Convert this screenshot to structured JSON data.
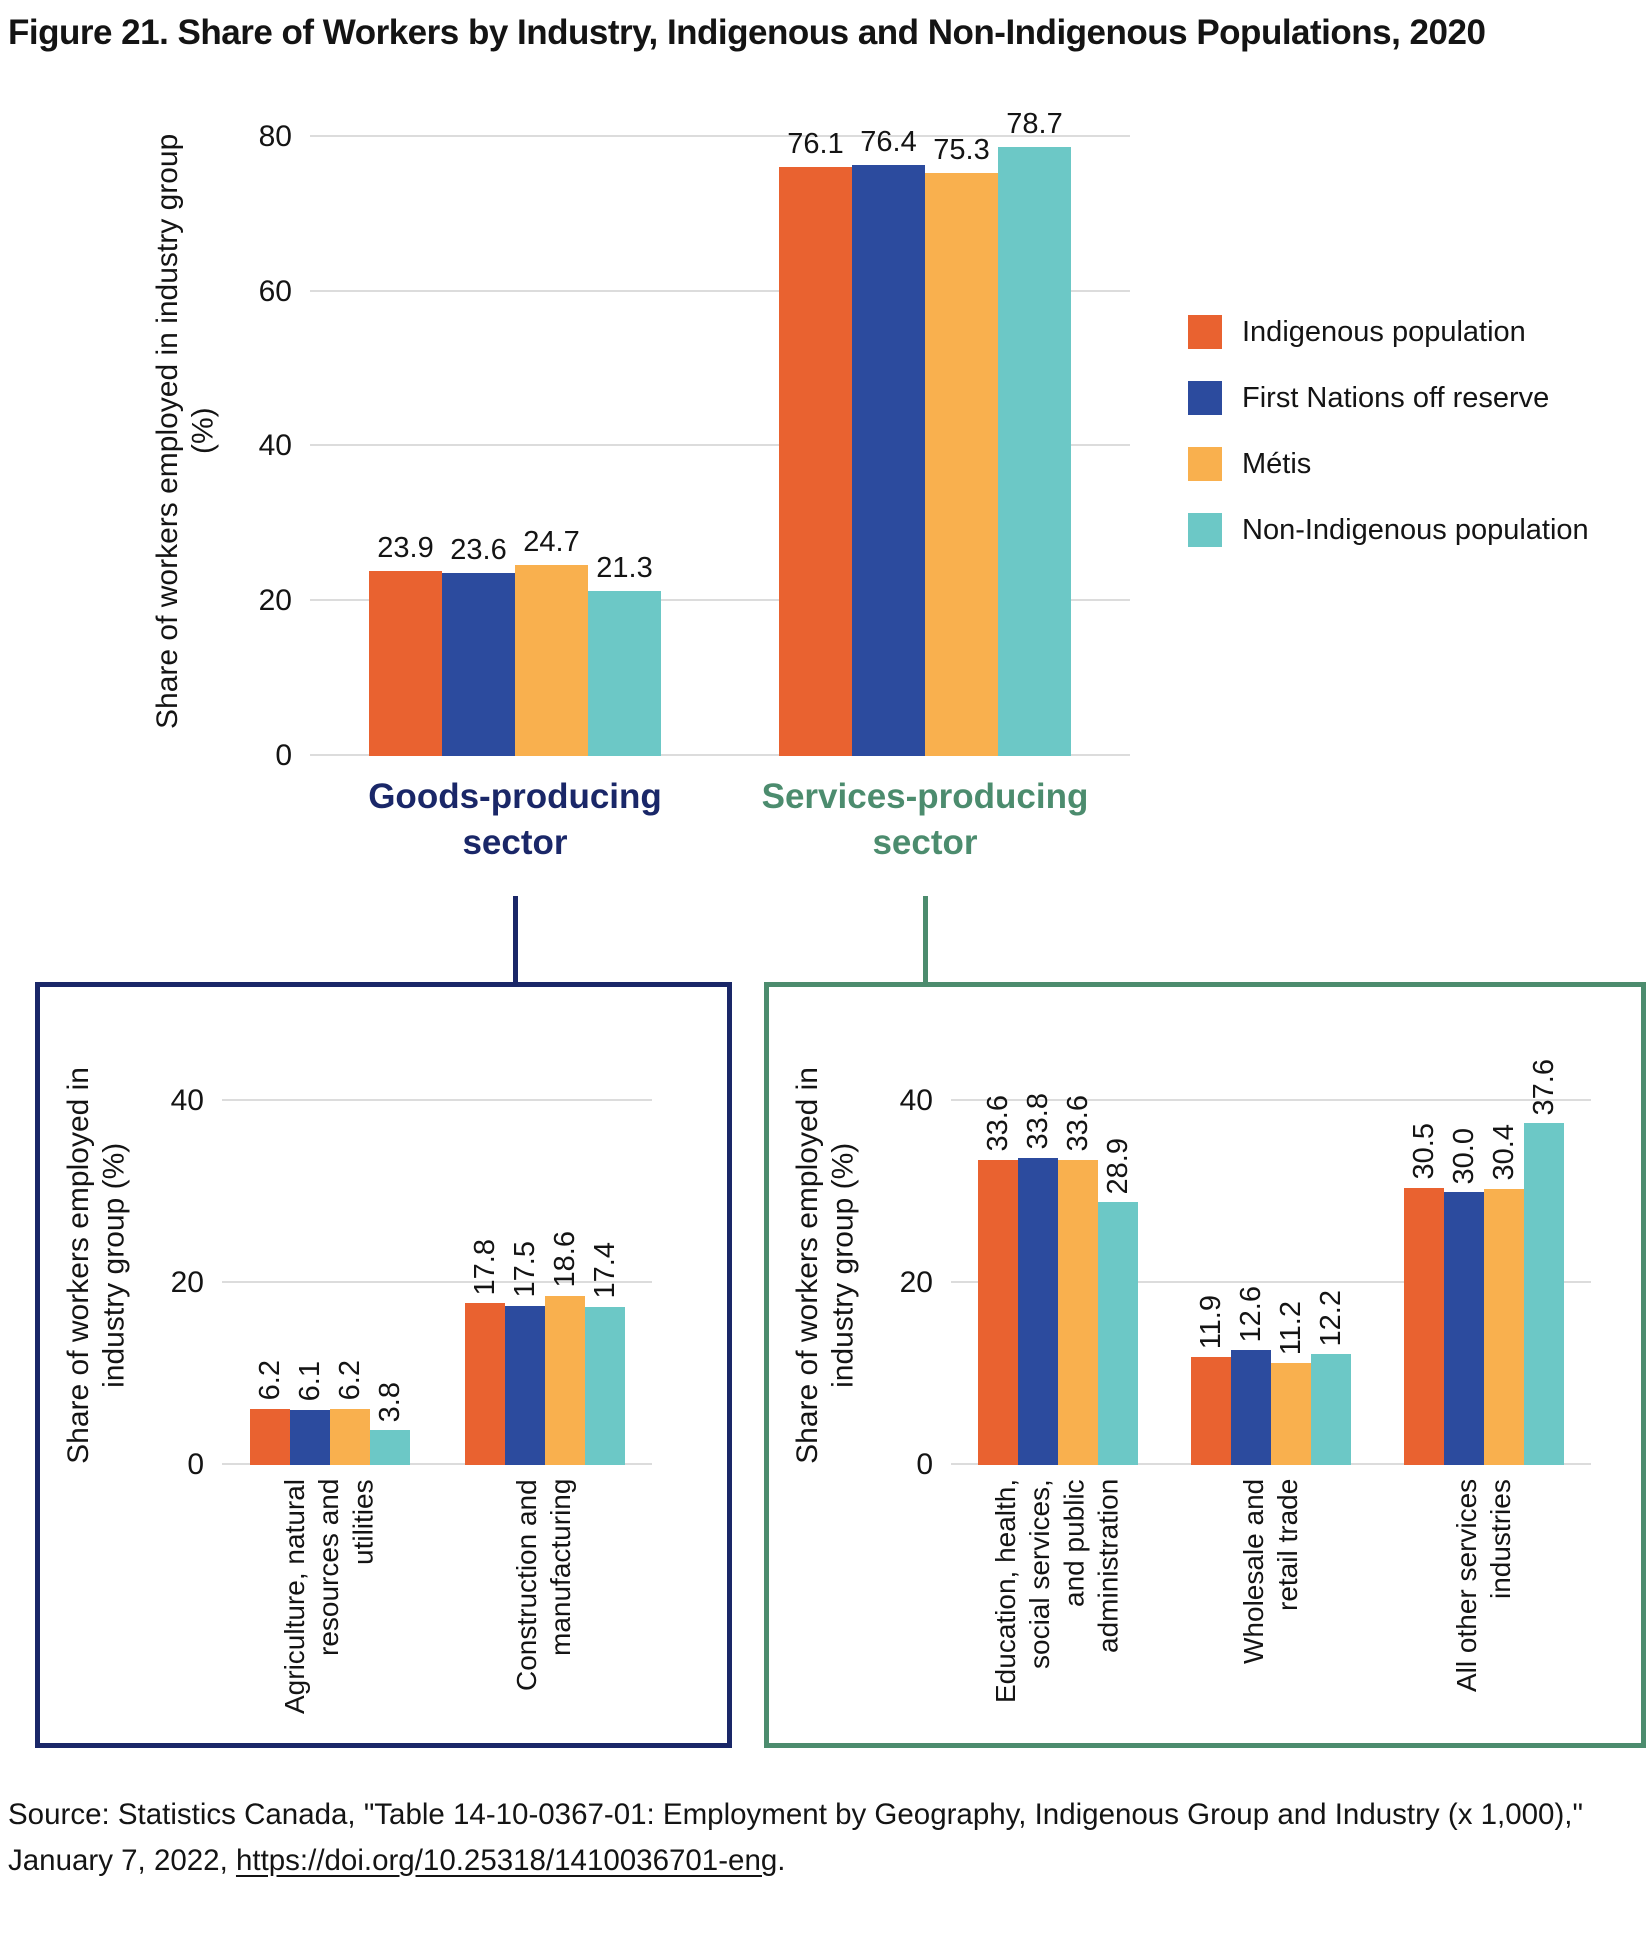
{
  "title": "Figure 21. Share of Workers by Industry, Indigenous and Non-Indigenous Populations, 2020",
  "colors": {
    "orange": "#E96230",
    "blue": "#2C4B9E",
    "amber": "#F9B04E",
    "teal": "#6CC8C6",
    "navy": "#1A2768",
    "green": "#4C8C6E",
    "gridline": "#DCDCDC"
  },
  "legend": {
    "items": [
      {
        "label": "Indigenous population",
        "color": "#E96230"
      },
      {
        "label": "First Nations off reserve",
        "color": "#2C4B9E"
      },
      {
        "label": "Métis",
        "color": "#F9B04E"
      },
      {
        "label": "Non-Indigenous population",
        "color": "#6CC8C6"
      }
    ]
  },
  "sectors": {
    "goods": {
      "label": "Goods-producing\nsector",
      "color": "#1A2768"
    },
    "services": {
      "label": "Services-producing\nsector",
      "color": "#4C8C6E"
    }
  },
  "chart_data": [
    {
      "id": "main",
      "type": "bar",
      "title": "",
      "ylabel": "Share of workers employed in industry group (%)",
      "ylim": [
        0,
        80
      ],
      "yticks": [
        0,
        20,
        40,
        60,
        80
      ],
      "grid": true,
      "legend_position": "right",
      "categories": [
        "Goods-producing sector",
        "Services-producing sector"
      ],
      "series": [
        {
          "name": "Indigenous population",
          "color": "#E96230",
          "values": [
            23.9,
            76.1
          ]
        },
        {
          "name": "First Nations off reserve",
          "color": "#2C4B9E",
          "values": [
            23.6,
            76.4
          ]
        },
        {
          "name": "Métis",
          "color": "#F9B04E",
          "values": [
            24.7,
            75.3
          ]
        },
        {
          "name": "Non-Indigenous population",
          "color": "#6CC8C6",
          "values": [
            21.3,
            78.7
          ]
        }
      ]
    },
    {
      "id": "goods-sub",
      "type": "bar",
      "title": "Goods-producing sector detail",
      "ylabel": "Share of workers employed in\nindustry group (%)",
      "ylim": [
        0,
        40
      ],
      "yticks": [
        0,
        20,
        40
      ],
      "grid": true,
      "frame_color": "#1A2768",
      "categories": [
        "Agriculture, natural\nresources and\nutilities",
        "Construction and\nmanufacturing"
      ],
      "series": [
        {
          "name": "Indigenous population",
          "color": "#E96230",
          "values": [
            6.2,
            17.8
          ]
        },
        {
          "name": "First Nations off reserve",
          "color": "#2C4B9E",
          "values": [
            6.1,
            17.5
          ]
        },
        {
          "name": "Métis",
          "color": "#F9B04E",
          "values": [
            6.2,
            18.6
          ]
        },
        {
          "name": "Non-Indigenous population",
          "color": "#6CC8C6",
          "values": [
            3.8,
            17.4
          ]
        }
      ]
    },
    {
      "id": "services-sub",
      "type": "bar",
      "title": "Services-producing sector detail",
      "ylabel": "Share of workers employed in\nindustry group (%)",
      "ylim": [
        0,
        40
      ],
      "yticks": [
        0,
        20,
        40
      ],
      "grid": true,
      "frame_color": "#4C8C6E",
      "categories": [
        "Education, health,\nsocial services,\nand public\nadministration",
        "Wholesale and\nretail trade",
        "All other services\nindustries"
      ],
      "series": [
        {
          "name": "Indigenous population",
          "color": "#E96230",
          "values": [
            33.6,
            11.9,
            30.5
          ]
        },
        {
          "name": "First Nations off reserve",
          "color": "#2C4B9E",
          "values": [
            33.8,
            12.6,
            30.0
          ]
        },
        {
          "name": "Métis",
          "color": "#F9B04E",
          "values": [
            33.6,
            11.2,
            30.4
          ]
        },
        {
          "name": "Non-Indigenous population",
          "color": "#6CC8C6",
          "values": [
            28.9,
            12.2,
            37.6
          ]
        }
      ]
    }
  ],
  "source": {
    "prefix": "Source: Statistics Canada, \"Table 14-10-0367-01: Employment by Geography, Indigenous Group and Industry (x 1,000),\" January 7, 2022, ",
    "link_text": "https://doi.org/10.25318/1410036701-eng",
    "link_href": "https://doi.org/10.25318/1410036701-eng",
    "suffix": "."
  }
}
